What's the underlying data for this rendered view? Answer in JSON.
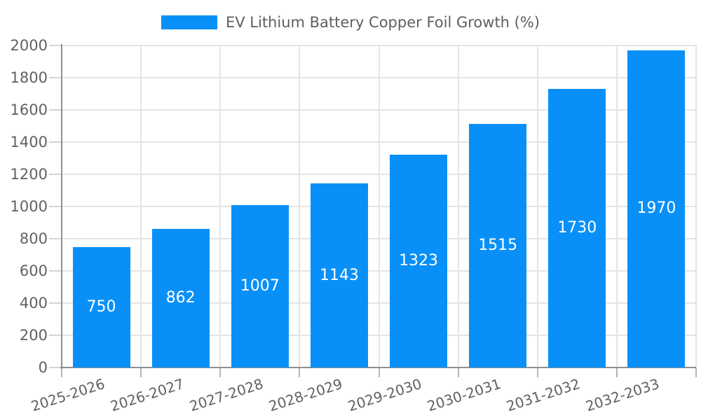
{
  "legend": {
    "items": [
      {
        "label": "EV Lithium Battery Copper Foil Growth (%)",
        "color": "#0990f8"
      }
    ]
  },
  "chart_data": {
    "type": "bar",
    "title": "EV Lithium Battery Copper Foil Growth (%)",
    "categories": [
      "2025-2026",
      "2026-2027",
      "2027-2028",
      "2028-2029",
      "2029-2030",
      "2030-2031",
      "2031-2032",
      "2032-2033"
    ],
    "series": [
      {
        "name": "EV Lithium Battery Copper Foil Growth (%)",
        "color": "#0990f8",
        "values": [
          750,
          862,
          1007,
          1143,
          1323,
          1515,
          1730,
          1970
        ]
      }
    ],
    "value_labels_shown": true,
    "xlabel": "",
    "ylabel": "",
    "ylim": [
      0,
      2000
    ],
    "yticks": [
      0,
      200,
      400,
      600,
      800,
      1000,
      1200,
      1400,
      1600,
      1800,
      2000
    ],
    "grid": {
      "horizontal": true,
      "vertical": true
    },
    "legend_position": "top",
    "x_tick_rotation_deg": -18
  },
  "colors": {
    "bar": "#0990f8",
    "value_label": "#ffffff",
    "axis_line": "#8f8f8f",
    "grid_line": "#e4e4e4",
    "y_tick_mark": "#d5d5d5",
    "x_tick_mark": "#b5b5b5",
    "axis_text": "#616161",
    "legend_text": "#5f5f5f",
    "background": "#ffffff"
  }
}
